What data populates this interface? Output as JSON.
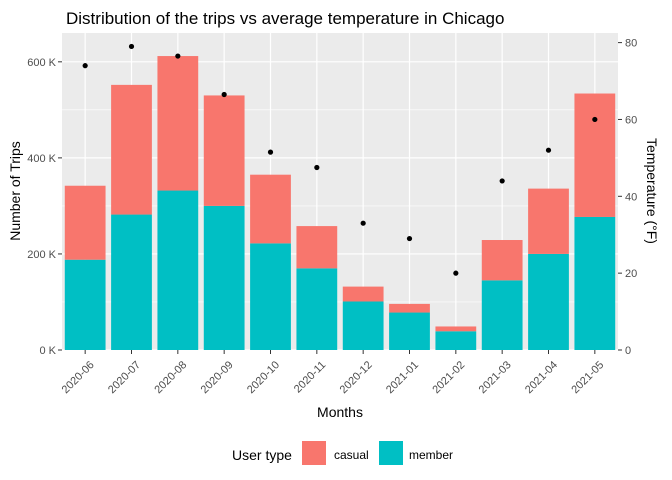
{
  "chart_data": {
    "type": "bar",
    "title": "Distribution of the trips vs average temperature in Chicago",
    "xlabel": "Months",
    "ylabel": "Number of Trips",
    "y2label": "Temperature (°F)",
    "stacked": true,
    "grid": true,
    "legend_position": "bottom",
    "legend_title": "User type",
    "ylim": [
      0,
      660000
    ],
    "y2lim": [
      0,
      82.5
    ],
    "y_ticks": [
      {
        "value": 0,
        "label": "0 K"
      },
      {
        "value": 200000,
        "label": "200 K"
      },
      {
        "value": 400000,
        "label": "400 K"
      },
      {
        "value": 600000,
        "label": "600 K"
      }
    ],
    "y2_ticks": [
      {
        "value": 0,
        "label": "0"
      },
      {
        "value": 20,
        "label": "20"
      },
      {
        "value": 40,
        "label": "40"
      },
      {
        "value": 60,
        "label": "60"
      },
      {
        "value": 80,
        "label": "80"
      }
    ],
    "categories": [
      "2020-06",
      "2020-07",
      "2020-08",
      "2020-09",
      "2020-10",
      "2020-11",
      "2020-12",
      "2021-01",
      "2021-02",
      "2021-03",
      "2021-04",
      "2021-05"
    ],
    "series": [
      {
        "name": "member",
        "color": "#00bfc4",
        "values": [
          188000,
          282000,
          332000,
          300000,
          222000,
          170000,
          101000,
          78000,
          39000,
          145000,
          200000,
          277000
        ]
      },
      {
        "name": "casual",
        "color": "#f8766d",
        "values": [
          154000,
          270000,
          280000,
          230000,
          143000,
          88000,
          31000,
          18000,
          10000,
          84000,
          136000,
          257000
        ]
      }
    ],
    "temperature": {
      "color": "#000000",
      "values": [
        74,
        79,
        76.5,
        66.5,
        51.5,
        47.5,
        33,
        29,
        20,
        44,
        52,
        60
      ]
    }
  }
}
